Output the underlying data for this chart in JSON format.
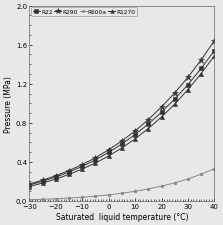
{
  "title": "",
  "xlabel": "Saturated  liquid temperature (°C)",
  "ylabel": "Pressure (MPa)",
  "xlim": [
    -30,
    40
  ],
  "ylim": [
    0,
    2.0
  ],
  "xticks": [
    -30,
    -20,
    -10,
    0,
    10,
    20,
    30,
    40
  ],
  "yticks": [
    0.0,
    0.4,
    0.8,
    1.2,
    1.6,
    2.0
  ],
  "series": {
    "R22": {
      "temps": [
        -30,
        -25,
        -20,
        -15,
        -10,
        -5,
        0,
        5,
        10,
        15,
        20,
        25,
        30,
        35,
        40
      ],
      "pressures": [
        0.163,
        0.201,
        0.245,
        0.296,
        0.354,
        0.421,
        0.498,
        0.583,
        0.68,
        0.788,
        0.91,
        1.044,
        1.192,
        1.357,
        1.54
      ],
      "marker": "s",
      "markersize": 3.0,
      "color": "#333333",
      "linestyle": "-",
      "label": "R22"
    },
    "R290": {
      "temps": [
        -30,
        -25,
        -20,
        -15,
        -10,
        -5,
        0,
        5,
        10,
        15,
        20,
        25,
        30,
        35,
        40
      ],
      "pressures": [
        0.174,
        0.213,
        0.259,
        0.312,
        0.373,
        0.443,
        0.524,
        0.615,
        0.717,
        0.833,
        0.963,
        1.107,
        1.267,
        1.445,
        1.642
      ],
      "marker": "*",
      "markersize": 4.5,
      "color": "#333333",
      "linestyle": "-",
      "label": "R290"
    },
    "R600a": {
      "temps": [
        -30,
        -25,
        -20,
        -15,
        -10,
        -5,
        0,
        5,
        10,
        15,
        20,
        25,
        30,
        35,
        40
      ],
      "pressures": [
        0.013,
        0.017,
        0.023,
        0.03,
        0.038,
        0.049,
        0.063,
        0.079,
        0.099,
        0.123,
        0.152,
        0.186,
        0.226,
        0.274,
        0.33
      ],
      "marker": "o",
      "markersize": 2.0,
      "color": "#888888",
      "linestyle": "-",
      "label": "R600a"
    },
    "R1270": {
      "temps": [
        -30,
        -25,
        -20,
        -15,
        -10,
        -5,
        0,
        5,
        10,
        15,
        20,
        25,
        30,
        35,
        40
      ],
      "pressures": [
        0.148,
        0.183,
        0.224,
        0.272,
        0.326,
        0.389,
        0.461,
        0.543,
        0.636,
        0.742,
        0.86,
        0.992,
        1.141,
        1.305,
        1.487
      ],
      "marker": "^",
      "markersize": 3.0,
      "color": "#333333",
      "linestyle": "-",
      "label": "R1270"
    }
  },
  "legend_loc": "upper left",
  "background_color": "#e8e8e8",
  "plot_bg_color": "#e8e8e8"
}
